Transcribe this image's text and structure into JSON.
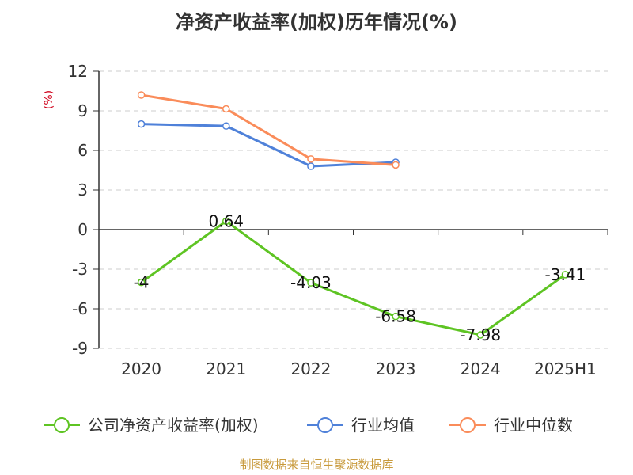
{
  "chart_data": {
    "type": "line",
    "title": "净资产收益率(加权)历年情况(%)",
    "unit_label": "(%)",
    "categories": [
      "2020",
      "2021",
      "2022",
      "2023",
      "2024",
      "2025H1"
    ],
    "ylim": [
      -9,
      12
    ],
    "yticks": [
      12,
      9,
      6,
      3,
      0,
      -3,
      -6,
      -9
    ],
    "grid": true,
    "legend_position": "bottom",
    "series": [
      {
        "name": "公司净资产收益率(加权)",
        "color": "#5ec423",
        "values": [
          -4,
          0.64,
          -4.03,
          -6.58,
          -7.98,
          -3.41
        ],
        "labels": [
          "-4",
          "0.64",
          "-4.03",
          "-6.58",
          "-7.98",
          "-3.41"
        ]
      },
      {
        "name": "行业均值",
        "color": "#4f81d9",
        "values": [
          8.0,
          7.85,
          4.8,
          5.1,
          null,
          null
        ]
      },
      {
        "name": "行业中位数",
        "color": "#fa8c5a",
        "values": [
          10.2,
          9.15,
          5.35,
          4.9,
          null,
          null
        ]
      }
    ]
  },
  "source": "制图数据来自恒生聚源数据库"
}
